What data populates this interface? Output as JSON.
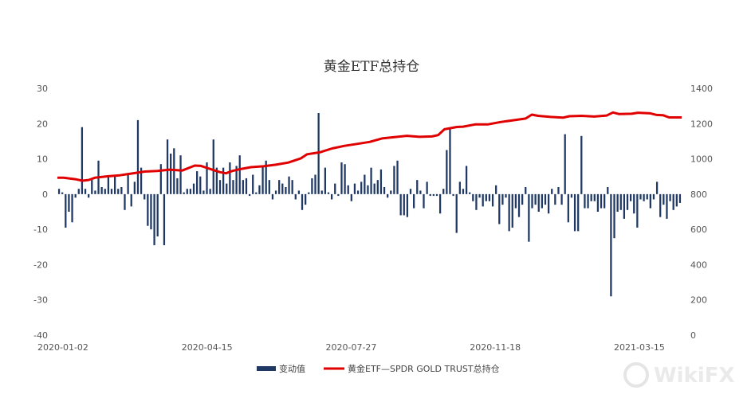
{
  "chart_data": {
    "type": "bar+line",
    "title": "黄金ETF总持仓",
    "x_tick_labels": [
      "2020-01-02",
      "2020-04-15",
      "2020-07-27",
      "2020-11-18",
      "2021-03-15"
    ],
    "y_left": {
      "ylim": [
        -40,
        30
      ],
      "ticks": [
        "30",
        "20",
        "10",
        "0",
        "-10",
        "-20",
        "-30",
        "-40"
      ]
    },
    "y_right": {
      "ylim": [
        0,
        1400
      ],
      "ticks": [
        "1400",
        "1200",
        "1000",
        "800",
        "600",
        "400",
        "200",
        "0"
      ]
    },
    "grid": false,
    "legend_position": "bottom",
    "legend": [
      "变动值",
      "黄金ETF—SPDR GOLD TRUST总持仓"
    ],
    "colors": {
      "bars": "#1f3864",
      "line": "#e00000"
    },
    "series": [
      {
        "name": "变动值",
        "type": "bar",
        "axis": "left",
        "values": [
          1.5,
          0.5,
          -9.5,
          -5,
          -8,
          -1,
          1.5,
          19,
          1.5,
          -1,
          4,
          1,
          9.5,
          2,
          1.5,
          5,
          1.5,
          5.5,
          1.5,
          2,
          -4.5,
          6,
          -3.5,
          3.5,
          21,
          7.5,
          -1.5,
          -9,
          -10,
          -14.5,
          -12,
          8.5,
          -14.5,
          15.5,
          11.5,
          13,
          4.5,
          11,
          0.5,
          1.5,
          1.5,
          3,
          6.5,
          5,
          1,
          9,
          1.5,
          15.5,
          7.5,
          4,
          7.5,
          3,
          9,
          4,
          8,
          11,
          4,
          4.5,
          -0.5,
          5.5,
          0.5,
          2.5,
          8,
          9.5,
          4,
          -1.5,
          1,
          4,
          3,
          2,
          5,
          4,
          -1.5,
          1,
          -4.5,
          -3,
          0.5,
          4.5,
          5.5,
          23,
          1,
          7.5,
          0.5,
          -1.5,
          3,
          -0.5,
          9,
          8.5,
          2.5,
          -2,
          3,
          1,
          3.5,
          5.5,
          2.5,
          7.5,
          3,
          4,
          7,
          2,
          -1,
          1,
          8,
          9.5,
          -6,
          -6,
          -6.5,
          1.5,
          -4,
          4,
          1,
          -4,
          3.5,
          -0.5,
          -0.5,
          -0.5,
          -5.5,
          1.5,
          12.5,
          18.5,
          -0.5,
          -11,
          3.5,
          1.5,
          8,
          0.5,
          -2,
          -4.5,
          -1,
          -3.5,
          -2,
          -2,
          -3.5,
          2.5,
          -8.5,
          -3,
          -1,
          -10.5,
          -9.5,
          -4,
          -6.5,
          -3,
          2,
          -13.5,
          -4,
          -3,
          -5,
          -4,
          -3,
          -5.5,
          1.5,
          -3,
          2,
          -3,
          17,
          -8,
          -1,
          -10.5,
          -10.5,
          16.5,
          -4,
          -4,
          -2,
          -2,
          -5,
          -4,
          -4,
          2,
          -29,
          -12.5,
          -5,
          -4.5,
          -7,
          -4.5,
          -2,
          -5.5,
          -9.5,
          -1.5,
          -2,
          -1.5,
          -4,
          -1.5,
          3.5,
          -6.5,
          -3,
          -7,
          -2,
          -4.5,
          -3.5,
          -2.5
        ]
      },
      {
        "name": "黄金ETF—SPDR GOLD TRUST总持仓",
        "type": "line",
        "axis": "right",
        "x_span": [
          0,
          1
        ],
        "points": [
          [
            0.0,
            893
          ],
          [
            0.01,
            893
          ],
          [
            0.03,
            884
          ],
          [
            0.04,
            876
          ],
          [
            0.05,
            880
          ],
          [
            0.06,
            893
          ],
          [
            0.08,
            901
          ],
          [
            0.1,
            907
          ],
          [
            0.12,
            917
          ],
          [
            0.14,
            928
          ],
          [
            0.16,
            931
          ],
          [
            0.18,
            939
          ],
          [
            0.2,
            934
          ],
          [
            0.22,
            962
          ],
          [
            0.23,
            960
          ],
          [
            0.24,
            948
          ],
          [
            0.26,
            925
          ],
          [
            0.27,
            918
          ],
          [
            0.28,
            931
          ],
          [
            0.29,
            940
          ],
          [
            0.31,
            953
          ],
          [
            0.33,
            958
          ],
          [
            0.35,
            967
          ],
          [
            0.37,
            979
          ],
          [
            0.39,
            1003
          ],
          [
            0.4,
            1026
          ],
          [
            0.42,
            1037
          ],
          [
            0.44,
            1059
          ],
          [
            0.46,
            1074
          ],
          [
            0.48,
            1085
          ],
          [
            0.5,
            1096
          ],
          [
            0.52,
            1116
          ],
          [
            0.54,
            1123
          ],
          [
            0.56,
            1131
          ],
          [
            0.58,
            1125
          ],
          [
            0.6,
            1127
          ],
          [
            0.61,
            1135
          ],
          [
            0.62,
            1168
          ],
          [
            0.64,
            1181
          ],
          [
            0.65,
            1183
          ],
          [
            0.67,
            1196
          ],
          [
            0.69,
            1196
          ],
          [
            0.71,
            1209
          ],
          [
            0.73,
            1219
          ],
          [
            0.75,
            1229
          ],
          [
            0.76,
            1251
          ],
          [
            0.77,
            1244
          ],
          [
            0.79,
            1238
          ],
          [
            0.81,
            1234
          ],
          [
            0.82,
            1242
          ],
          [
            0.84,
            1244
          ],
          [
            0.86,
            1240
          ],
          [
            0.88,
            1246
          ],
          [
            0.89,
            1263
          ],
          [
            0.9,
            1254
          ],
          [
            0.92,
            1256
          ],
          [
            0.93,
            1262
          ],
          [
            0.95,
            1258
          ],
          [
            0.96,
            1249
          ],
          [
            0.97,
            1248
          ],
          [
            0.98,
            1235
          ],
          [
            1.0,
            1235
          ]
        ]
      }
    ]
  },
  "watermark": "WikiFX"
}
